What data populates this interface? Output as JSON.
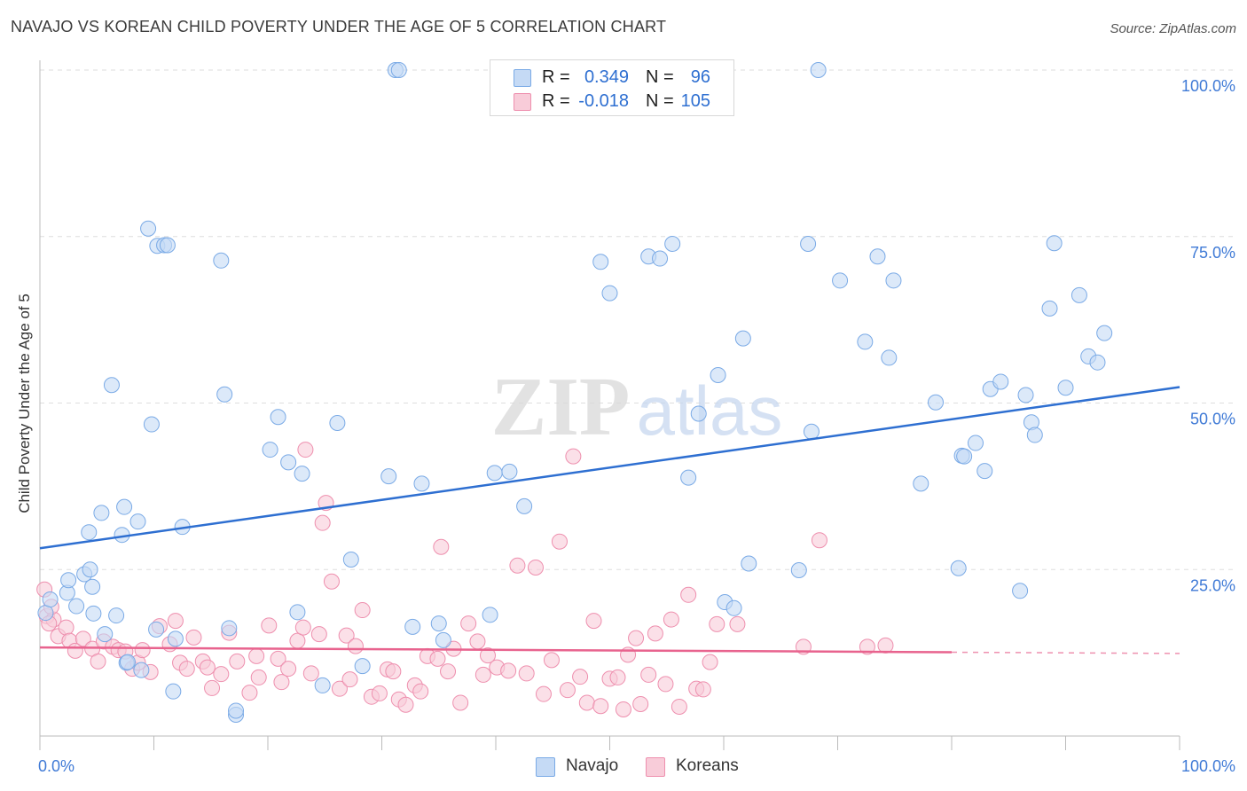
{
  "header": {
    "title": "NAVAJO VS KOREAN CHILD POVERTY UNDER THE AGE OF 5 CORRELATION CHART",
    "source": "Source: ZipAtlas.com"
  },
  "watermark": {
    "zip": "ZIP",
    "atlas": "atlas"
  },
  "legend_top": {
    "rows": [
      {
        "r_label": "R =",
        "r_value": "0.349",
        "n_label": "N =",
        "n_value": "96",
        "color": "#aac8f0"
      },
      {
        "r_label": "R =",
        "r_value": "-0.018",
        "n_label": "N =",
        "n_value": "105",
        "color": "#f5b8cb"
      }
    ]
  },
  "legend_bottom": {
    "items": [
      {
        "label": "Navajo",
        "color": "#aac8f0"
      },
      {
        "label": "Koreans",
        "color": "#f5b8cb"
      }
    ]
  },
  "chart_data": {
    "type": "scatter",
    "title": "NAVAJO VS KOREAN CHILD POVERTY UNDER THE AGE OF 5 CORRELATION CHART",
    "xlabel": "",
    "ylabel": "Child Poverty Under the Age of 5",
    "xlim": [
      0,
      100
    ],
    "ylim": [
      0,
      100
    ],
    "x_tick_labels": [
      "0.0%",
      "100.0%"
    ],
    "y_tick_labels": [
      "25.0%",
      "50.0%",
      "75.0%",
      "100.0%"
    ],
    "y_ticks": [
      25,
      50,
      75,
      100
    ],
    "grid": true,
    "legend_position": "top-center",
    "series": [
      {
        "name": "Navajo",
        "color": "#7aaae6",
        "fill": "#c5daf5",
        "trend": {
          "x": [
            0,
            100
          ],
          "y": [
            28.2,
            52.4
          ],
          "color": "#2e6fd1",
          "dashed_from": null
        },
        "points": [
          [
            0.5,
            18.5
          ],
          [
            0.9,
            20.5
          ],
          [
            2.4,
            21.5
          ],
          [
            2.5,
            23.4
          ],
          [
            3.2,
            19.5
          ],
          [
            3.9,
            24.3
          ],
          [
            4.4,
            25.0
          ],
          [
            4.6,
            22.4
          ],
          [
            4.3,
            30.6
          ],
          [
            4.7,
            18.4
          ],
          [
            5.4,
            33.5
          ],
          [
            5.7,
            15.3
          ],
          [
            6.3,
            52.7
          ],
          [
            6.7,
            18.1
          ],
          [
            7.2,
            30.2
          ],
          [
            7.4,
            34.4
          ],
          [
            7.6,
            11.0
          ],
          [
            7.7,
            11.1
          ],
          [
            8.6,
            32.2
          ],
          [
            8.9,
            9.9
          ],
          [
            9.5,
            76.2
          ],
          [
            9.8,
            46.8
          ],
          [
            10.2,
            16.0
          ],
          [
            10.3,
            73.6
          ],
          [
            10.9,
            73.7
          ],
          [
            11.2,
            73.7
          ],
          [
            11.7,
            6.7
          ],
          [
            11.9,
            14.6
          ],
          [
            12.5,
            31.4
          ],
          [
            15.9,
            71.4
          ],
          [
            16.2,
            51.3
          ],
          [
            16.6,
            16.2
          ],
          [
            17.2,
            3.2
          ],
          [
            17.2,
            3.8
          ],
          [
            20.2,
            43.0
          ],
          [
            20.9,
            47.9
          ],
          [
            21.8,
            41.1
          ],
          [
            22.6,
            18.6
          ],
          [
            23.0,
            39.4
          ],
          [
            24.8,
            7.6
          ],
          [
            26.1,
            47.0
          ],
          [
            27.3,
            26.5
          ],
          [
            28.3,
            10.5
          ],
          [
            30.6,
            39.0
          ],
          [
            31.2,
            100.0
          ],
          [
            31.5,
            100.0
          ],
          [
            32.7,
            16.4
          ],
          [
            33.5,
            37.9
          ],
          [
            35.0,
            16.9
          ],
          [
            35.4,
            14.4
          ],
          [
            39.5,
            18.2
          ],
          [
            39.9,
            39.5
          ],
          [
            41.2,
            39.7
          ],
          [
            42.5,
            34.5
          ],
          [
            44.7,
            100.0
          ],
          [
            49.2,
            71.2
          ],
          [
            50.0,
            66.5
          ],
          [
            53.4,
            72.0
          ],
          [
            54.4,
            71.7
          ],
          [
            55.5,
            73.9
          ],
          [
            56.9,
            38.8
          ],
          [
            57.8,
            48.4
          ],
          [
            59.5,
            54.2
          ],
          [
            60.1,
            20.1
          ],
          [
            60.9,
            19.2
          ],
          [
            61.7,
            59.7
          ],
          [
            62.2,
            25.9
          ],
          [
            66.6,
            24.9
          ],
          [
            67.4,
            73.9
          ],
          [
            67.7,
            45.7
          ],
          [
            68.3,
            100.0
          ],
          [
            70.2,
            68.4
          ],
          [
            72.4,
            59.2
          ],
          [
            73.5,
            72.0
          ],
          [
            74.5,
            56.8
          ],
          [
            74.9,
            68.4
          ],
          [
            77.3,
            37.9
          ],
          [
            78.6,
            50.1
          ],
          [
            80.6,
            25.2
          ],
          [
            80.9,
            42.1
          ],
          [
            81.1,
            42.0
          ],
          [
            82.1,
            44.0
          ],
          [
            82.9,
            39.8
          ],
          [
            83.4,
            52.1
          ],
          [
            84.3,
            53.2
          ],
          [
            86.0,
            21.8
          ],
          [
            86.5,
            51.2
          ],
          [
            87.0,
            47.1
          ],
          [
            87.3,
            45.2
          ],
          [
            88.6,
            64.2
          ],
          [
            89.0,
            74.0
          ],
          [
            90.0,
            52.3
          ],
          [
            91.2,
            66.2
          ],
          [
            92.0,
            57.0
          ],
          [
            92.8,
            56.1
          ],
          [
            93.4,
            60.5
          ]
        ]
      },
      {
        "name": "Koreans",
        "color": "#ee8fae",
        "fill": "#f8ccd9",
        "trend": {
          "x": [
            0,
            100
          ],
          "y": [
            13.3,
            12.4
          ],
          "color": "#e8638e",
          "dashed_from": 80
        },
        "points": [
          [
            0.4,
            22.0
          ],
          [
            0.6,
            18.0
          ],
          [
            1.2,
            17.5
          ],
          [
            1.6,
            15.0
          ],
          [
            2.3,
            16.3
          ],
          [
            2.6,
            14.3
          ],
          [
            3.1,
            12.8
          ],
          [
            3.8,
            14.6
          ],
          [
            4.6,
            13.1
          ],
          [
            5.1,
            11.2
          ],
          [
            5.6,
            14.2
          ],
          [
            6.4,
            13.4
          ],
          [
            6.9,
            12.9
          ],
          [
            7.5,
            12.7
          ],
          [
            8.1,
            10.1
          ],
          [
            8.6,
            11.0
          ],
          [
            9.0,
            12.9
          ],
          [
            9.7,
            9.6
          ],
          [
            10.5,
            16.5
          ],
          [
            11.4,
            13.8
          ],
          [
            11.9,
            17.3
          ],
          [
            12.3,
            11.0
          ],
          [
            12.9,
            10.1
          ],
          [
            13.5,
            14.8
          ],
          [
            14.3,
            11.2
          ],
          [
            14.7,
            10.3
          ],
          [
            15.1,
            7.2
          ],
          [
            15.9,
            9.3
          ],
          [
            16.6,
            15.5
          ],
          [
            17.3,
            11.2
          ],
          [
            18.4,
            6.5
          ],
          [
            19.0,
            12.0
          ],
          [
            19.2,
            8.8
          ],
          [
            20.1,
            16.6
          ],
          [
            20.9,
            11.6
          ],
          [
            21.2,
            8.1
          ],
          [
            21.8,
            10.1
          ],
          [
            22.6,
            14.3
          ],
          [
            23.1,
            16.3
          ],
          [
            23.3,
            43.0
          ],
          [
            23.8,
            9.4
          ],
          [
            24.5,
            15.3
          ],
          [
            24.8,
            32.0
          ],
          [
            25.1,
            35.0
          ],
          [
            25.6,
            23.2
          ],
          [
            26.3,
            7.1
          ],
          [
            26.9,
            15.1
          ],
          [
            27.2,
            8.5
          ],
          [
            27.7,
            13.5
          ],
          [
            28.3,
            18.9
          ],
          [
            29.1,
            5.9
          ],
          [
            29.8,
            6.4
          ],
          [
            30.5,
            10.0
          ],
          [
            31.0,
            9.7
          ],
          [
            31.5,
            5.5
          ],
          [
            32.1,
            4.7
          ],
          [
            32.9,
            7.6
          ],
          [
            33.4,
            6.7
          ],
          [
            34.0,
            12.0
          ],
          [
            34.9,
            11.6
          ],
          [
            35.2,
            28.4
          ],
          [
            35.8,
            9.7
          ],
          [
            36.3,
            13.1
          ],
          [
            36.9,
            5.0
          ],
          [
            37.6,
            16.9
          ],
          [
            38.4,
            14.2
          ],
          [
            38.9,
            9.2
          ],
          [
            39.3,
            12.1
          ],
          [
            40.1,
            10.3
          ],
          [
            41.1,
            9.8
          ],
          [
            41.9,
            25.6
          ],
          [
            42.7,
            9.4
          ],
          [
            43.5,
            25.3
          ],
          [
            44.2,
            6.3
          ],
          [
            44.9,
            11.4
          ],
          [
            45.6,
            29.2
          ],
          [
            46.3,
            6.9
          ],
          [
            46.8,
            42.0
          ],
          [
            47.4,
            8.9
          ],
          [
            48.0,
            5.0
          ],
          [
            48.6,
            17.3
          ],
          [
            49.2,
            4.5
          ],
          [
            50.0,
            8.6
          ],
          [
            50.7,
            8.8
          ],
          [
            51.2,
            4.0
          ],
          [
            51.6,
            12.2
          ],
          [
            52.3,
            14.7
          ],
          [
            52.7,
            4.8
          ],
          [
            53.4,
            9.2
          ],
          [
            54.0,
            15.4
          ],
          [
            54.9,
            7.8
          ],
          [
            55.4,
            17.5
          ],
          [
            56.1,
            4.4
          ],
          [
            56.9,
            21.2
          ],
          [
            57.6,
            7.1
          ],
          [
            58.2,
            7.0
          ],
          [
            58.8,
            11.1
          ],
          [
            59.4,
            16.8
          ],
          [
            61.2,
            16.8
          ],
          [
            67.0,
            13.4
          ],
          [
            68.4,
            29.4
          ],
          [
            72.6,
            13.4
          ],
          [
            74.2,
            13.6
          ],
          [
            0.8,
            16.9
          ],
          [
            1.0,
            19.4
          ]
        ]
      }
    ]
  }
}
